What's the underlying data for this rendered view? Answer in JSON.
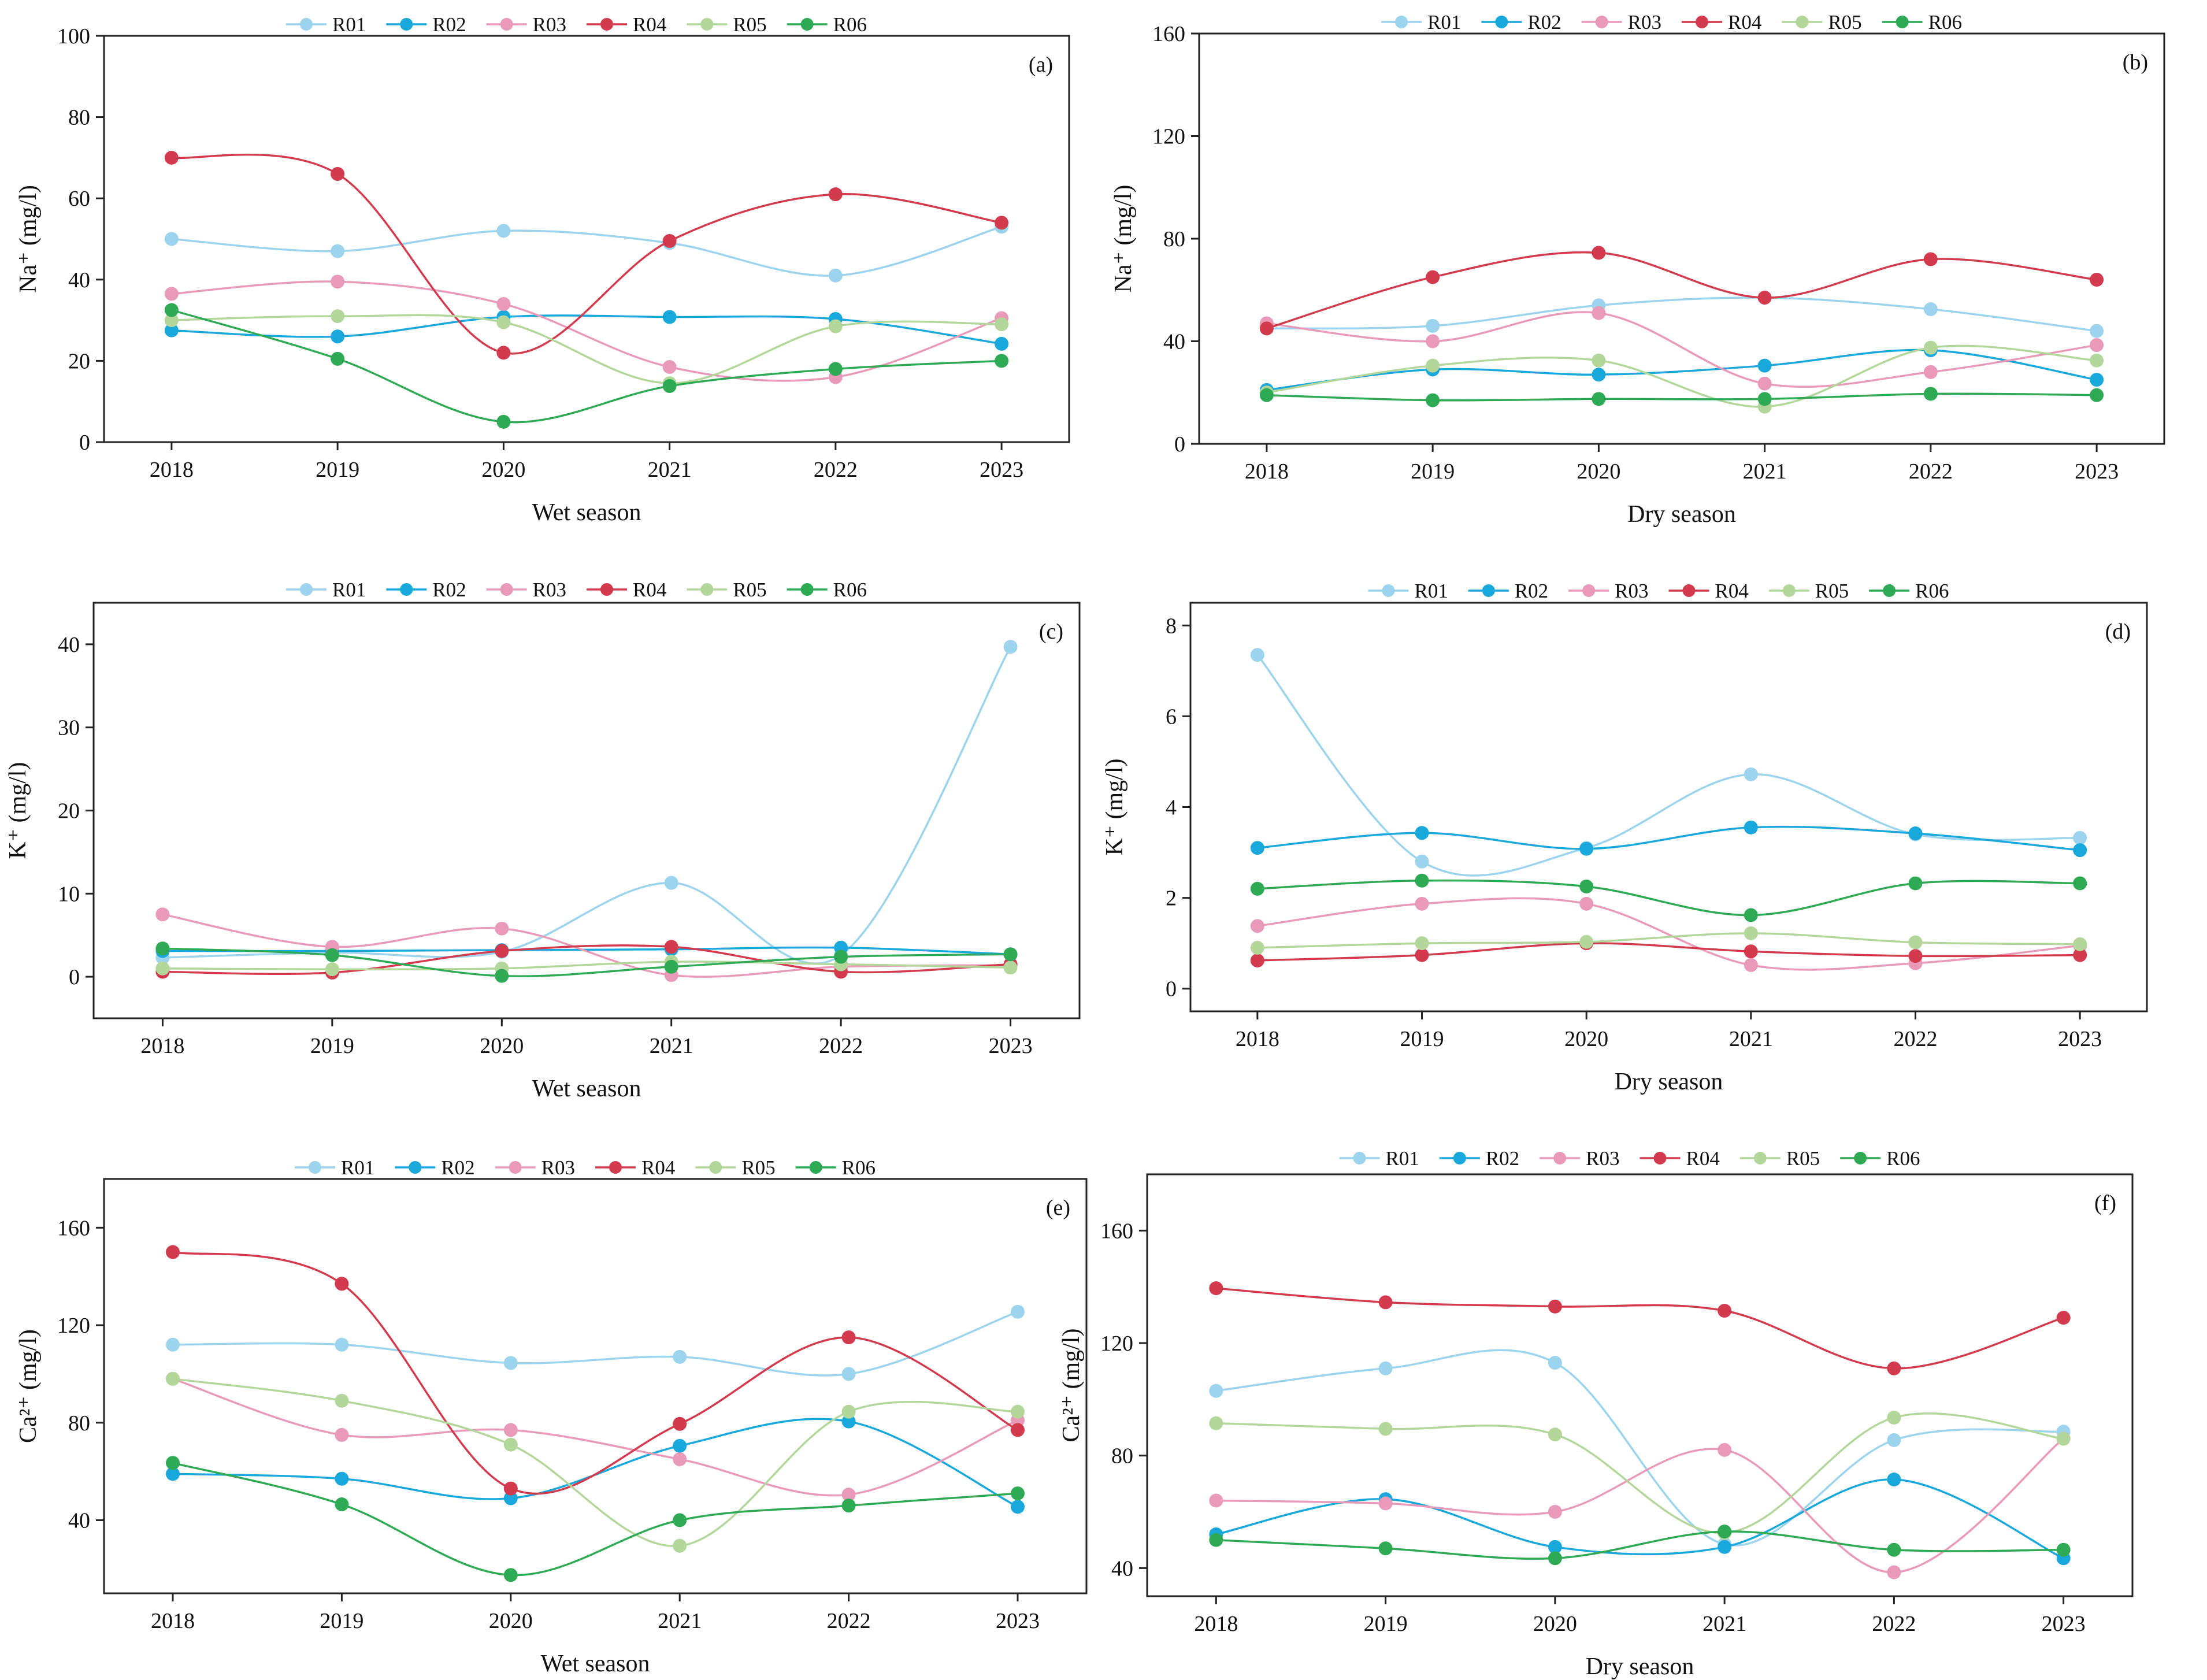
{
  "colors": {
    "R01": "#9bd4ec",
    "R02": "#19a8dc",
    "R03": "#e89ab8",
    "R04": "#d33a4e",
    "R05": "#b3d79a",
    "R06": "#2eaa55"
  },
  "chart_data": [
    {
      "type": "line",
      "panel_label": "(a)",
      "xlabel": "Wet season",
      "ylabel": "Na⁺ (mg/l)",
      "x": [
        "2018",
        "2019",
        "2020",
        "2021",
        "2022",
        "2023"
      ],
      "ylim": [
        0,
        100
      ],
      "yticks": [
        0,
        20,
        40,
        60,
        80,
        100
      ],
      "smooth": true,
      "legend": "top",
      "grid": false,
      "series": [
        {
          "name": "R01",
          "values": [
            50,
            47,
            52,
            49,
            41,
            53
          ]
        },
        {
          "name": "R02",
          "values": [
            27.5,
            26,
            30.8,
            30.8,
            30.3,
            24.2
          ]
        },
        {
          "name": "R03",
          "values": [
            36.5,
            39.5,
            34,
            18.5,
            16,
            30.5
          ]
        },
        {
          "name": "R04",
          "values": [
            70,
            66,
            22,
            49.5,
            61,
            54
          ]
        },
        {
          "name": "R05",
          "values": [
            30,
            31,
            29.5,
            14.5,
            28.5,
            29
          ]
        },
        {
          "name": "R06",
          "values": [
            32.5,
            20.5,
            5,
            13.8,
            18,
            20
          ]
        }
      ]
    },
    {
      "type": "line",
      "panel_label": "(b)",
      "xlabel": "Dry season",
      "ylabel": "Na⁺ (mg/l)",
      "x": [
        "2018",
        "2019",
        "2020",
        "2021",
        "2022",
        "2023"
      ],
      "ylim": [
        0,
        160
      ],
      "yticks": [
        0,
        40,
        80,
        120,
        160
      ],
      "smooth": true,
      "legend": "top",
      "grid": false,
      "series": [
        {
          "name": "R01",
          "values": [
            45,
            46,
            54,
            57,
            52.5,
            44
          ]
        },
        {
          "name": "R02",
          "values": [
            21,
            29,
            27,
            30.5,
            36.5,
            25
          ]
        },
        {
          "name": "R03",
          "values": [
            47,
            40,
            51,
            23.5,
            28,
            38.5
          ]
        },
        {
          "name": "R04",
          "values": [
            45,
            65,
            74.5,
            57,
            72,
            64
          ]
        },
        {
          "name": "R05",
          "values": [
            20,
            30.5,
            32.5,
            14.5,
            37.5,
            32.5
          ]
        },
        {
          "name": "R06",
          "values": [
            19,
            17,
            17.5,
            17.5,
            19.5,
            19
          ]
        }
      ]
    },
    {
      "type": "line",
      "panel_label": "(c)",
      "xlabel": "Wet season",
      "ylabel": "K⁺ (mg/l)",
      "x": [
        "2018",
        "2019",
        "2020",
        "2021",
        "2022",
        "2023"
      ],
      "ylim": [
        -5,
        45
      ],
      "yticks": [
        0,
        10,
        20,
        30,
        40
      ],
      "smooth": true,
      "legend": "top",
      "grid": false,
      "series": [
        {
          "name": "R01",
          "values": [
            2.3,
            2.9,
            3.0,
            11.3,
            2.6,
            39.7
          ]
        },
        {
          "name": "R02",
          "values": [
            3.1,
            3.1,
            3.2,
            3.3,
            3.5,
            2.7
          ]
        },
        {
          "name": "R03",
          "values": [
            7.5,
            3.6,
            5.8,
            0.2,
            1.2,
            1.4
          ]
        },
        {
          "name": "R04",
          "values": [
            0.6,
            0.5,
            3.1,
            3.6,
            0.6,
            1.5
          ]
        },
        {
          "name": "R05",
          "values": [
            1.0,
            0.9,
            1.0,
            1.8,
            1.5,
            1.1
          ]
        },
        {
          "name": "R06",
          "values": [
            3.4,
            2.6,
            0.1,
            1.2,
            2.4,
            2.7
          ]
        }
      ]
    },
    {
      "type": "line",
      "panel_label": "(d)",
      "xlabel": "Dry season",
      "ylabel": "K⁺ (mg/l)",
      "x": [
        "2018",
        "2019",
        "2020",
        "2021",
        "2022",
        "2023"
      ],
      "ylim": [
        -0.5,
        8.5
      ],
      "yticks": [
        0,
        2,
        4,
        6,
        8
      ],
      "smooth": true,
      "legend": "top",
      "grid": false,
      "series": [
        {
          "name": "R01",
          "values": [
            7.35,
            2.8,
            3.1,
            4.72,
            3.4,
            3.32
          ]
        },
        {
          "name": "R02",
          "values": [
            3.1,
            3.43,
            3.08,
            3.55,
            3.42,
            3.05
          ]
        },
        {
          "name": "R03",
          "values": [
            1.38,
            1.87,
            1.87,
            0.52,
            0.56,
            0.95
          ]
        },
        {
          "name": "R04",
          "values": [
            0.62,
            0.74,
            1.0,
            0.82,
            0.72,
            0.74
          ]
        },
        {
          "name": "R05",
          "values": [
            0.9,
            1.0,
            1.03,
            1.22,
            1.02,
            0.98
          ]
        },
        {
          "name": "R06",
          "values": [
            2.2,
            2.38,
            2.25,
            1.62,
            2.32,
            2.32
          ]
        }
      ]
    },
    {
      "type": "line",
      "panel_label": "(e)",
      "xlabel": "Wet season",
      "ylabel": "Ca²⁺ (mg/l)",
      "x": [
        "2018",
        "2019",
        "2020",
        "2021",
        "2022",
        "2023"
      ],
      "ylim": [
        10,
        180
      ],
      "yticks": [
        40,
        80,
        120,
        160
      ],
      "smooth": true,
      "legend": "top",
      "grid": false,
      "series": [
        {
          "name": "R01",
          "values": [
            112,
            112,
            104.5,
            107,
            100,
            125.5
          ]
        },
        {
          "name": "R02",
          "values": [
            59,
            57,
            49,
            70.5,
            80.5,
            45.5
          ]
        },
        {
          "name": "R03",
          "values": [
            98,
            75,
            77,
            65,
            50.5,
            81
          ]
        },
        {
          "name": "R04",
          "values": [
            150,
            137,
            53,
            79.5,
            115,
            77
          ]
        },
        {
          "name": "R05",
          "values": [
            98,
            89,
            71,
            29.5,
            84.5,
            84.5
          ]
        },
        {
          "name": "R06",
          "values": [
            63.5,
            46.5,
            17.5,
            40,
            46,
            51
          ]
        }
      ]
    },
    {
      "type": "line",
      "panel_label": "(f)",
      "xlabel": "Dry season",
      "ylabel": "Ca²⁺ (mg/l)",
      "x": [
        "2018",
        "2019",
        "2020",
        "2021",
        "2022",
        "2023"
      ],
      "ylim": [
        30,
        180
      ],
      "yticks": [
        40,
        80,
        120,
        160
      ],
      "smooth": true,
      "legend": "top",
      "grid": false,
      "series": [
        {
          "name": "R01",
          "values": [
            103,
            111,
            113,
            48.5,
            85.5,
            88.5
          ]
        },
        {
          "name": "R02",
          "values": [
            52,
            64.5,
            47.5,
            47.5,
            71.5,
            43.5
          ]
        },
        {
          "name": "R03",
          "values": [
            64,
            63,
            60,
            82,
            38.5,
            86
          ]
        },
        {
          "name": "R04",
          "values": [
            139.5,
            134.5,
            133,
            131.5,
            111,
            129
          ]
        },
        {
          "name": "R05",
          "values": [
            91.5,
            89.5,
            87.5,
            52.5,
            93.5,
            86
          ]
        },
        {
          "name": "R06",
          "values": [
            50,
            47,
            43.5,
            53,
            46.5,
            46.5
          ]
        }
      ]
    }
  ]
}
